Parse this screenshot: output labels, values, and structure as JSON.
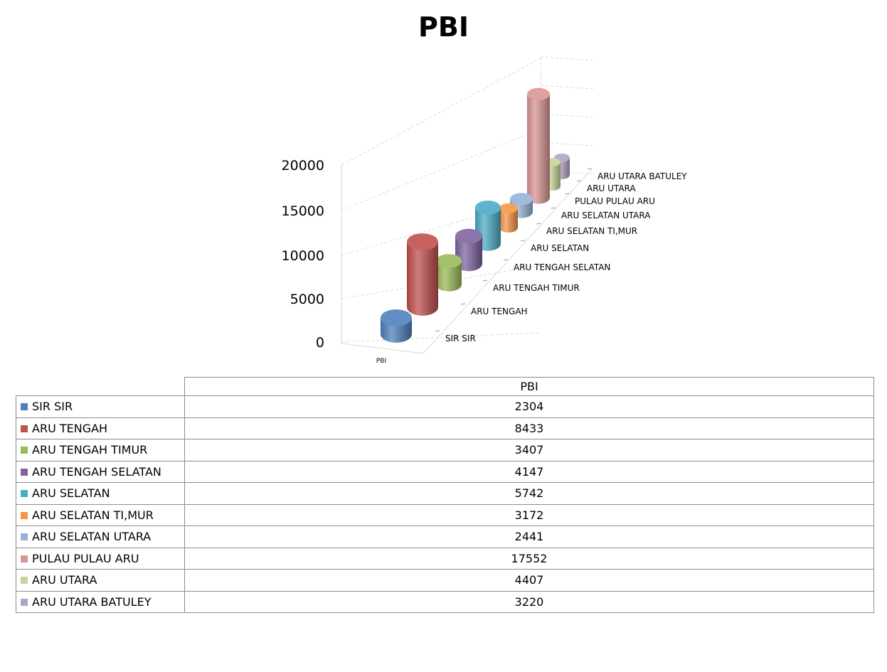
{
  "chart_data": {
    "type": "bar",
    "subtype": "3d-cylinder",
    "title": "PBI",
    "series_axis_label": "PBI",
    "categories": [
      "SIR SIR",
      "ARU TENGAH",
      "ARU TENGAH TIMUR",
      "ARU TENGAH SELATAN",
      "ARU SELATAN",
      "ARU SELATAN TI,MUR",
      "ARU SELATAN UTARA",
      "PULAU PULAU ARU",
      "ARU UTARA",
      "ARU UTARA BATULEY"
    ],
    "values": [
      2304,
      8433,
      3407,
      4147,
      5742,
      3172,
      2441,
      17552,
      4407,
      3220
    ],
    "colors": [
      "#4F81BD",
      "#C0504D",
      "#9BBB59",
      "#8064A2",
      "#4BACC6",
      "#F79646",
      "#95B3D7",
      "#D99694",
      "#C3D69B",
      "#B3A2C7"
    ],
    "ylim": [
      0,
      20000
    ],
    "yticks": [
      "0",
      "5000",
      "10000",
      "15000",
      "20000"
    ],
    "grid": true,
    "data_table": {
      "header": "PBI"
    }
  }
}
